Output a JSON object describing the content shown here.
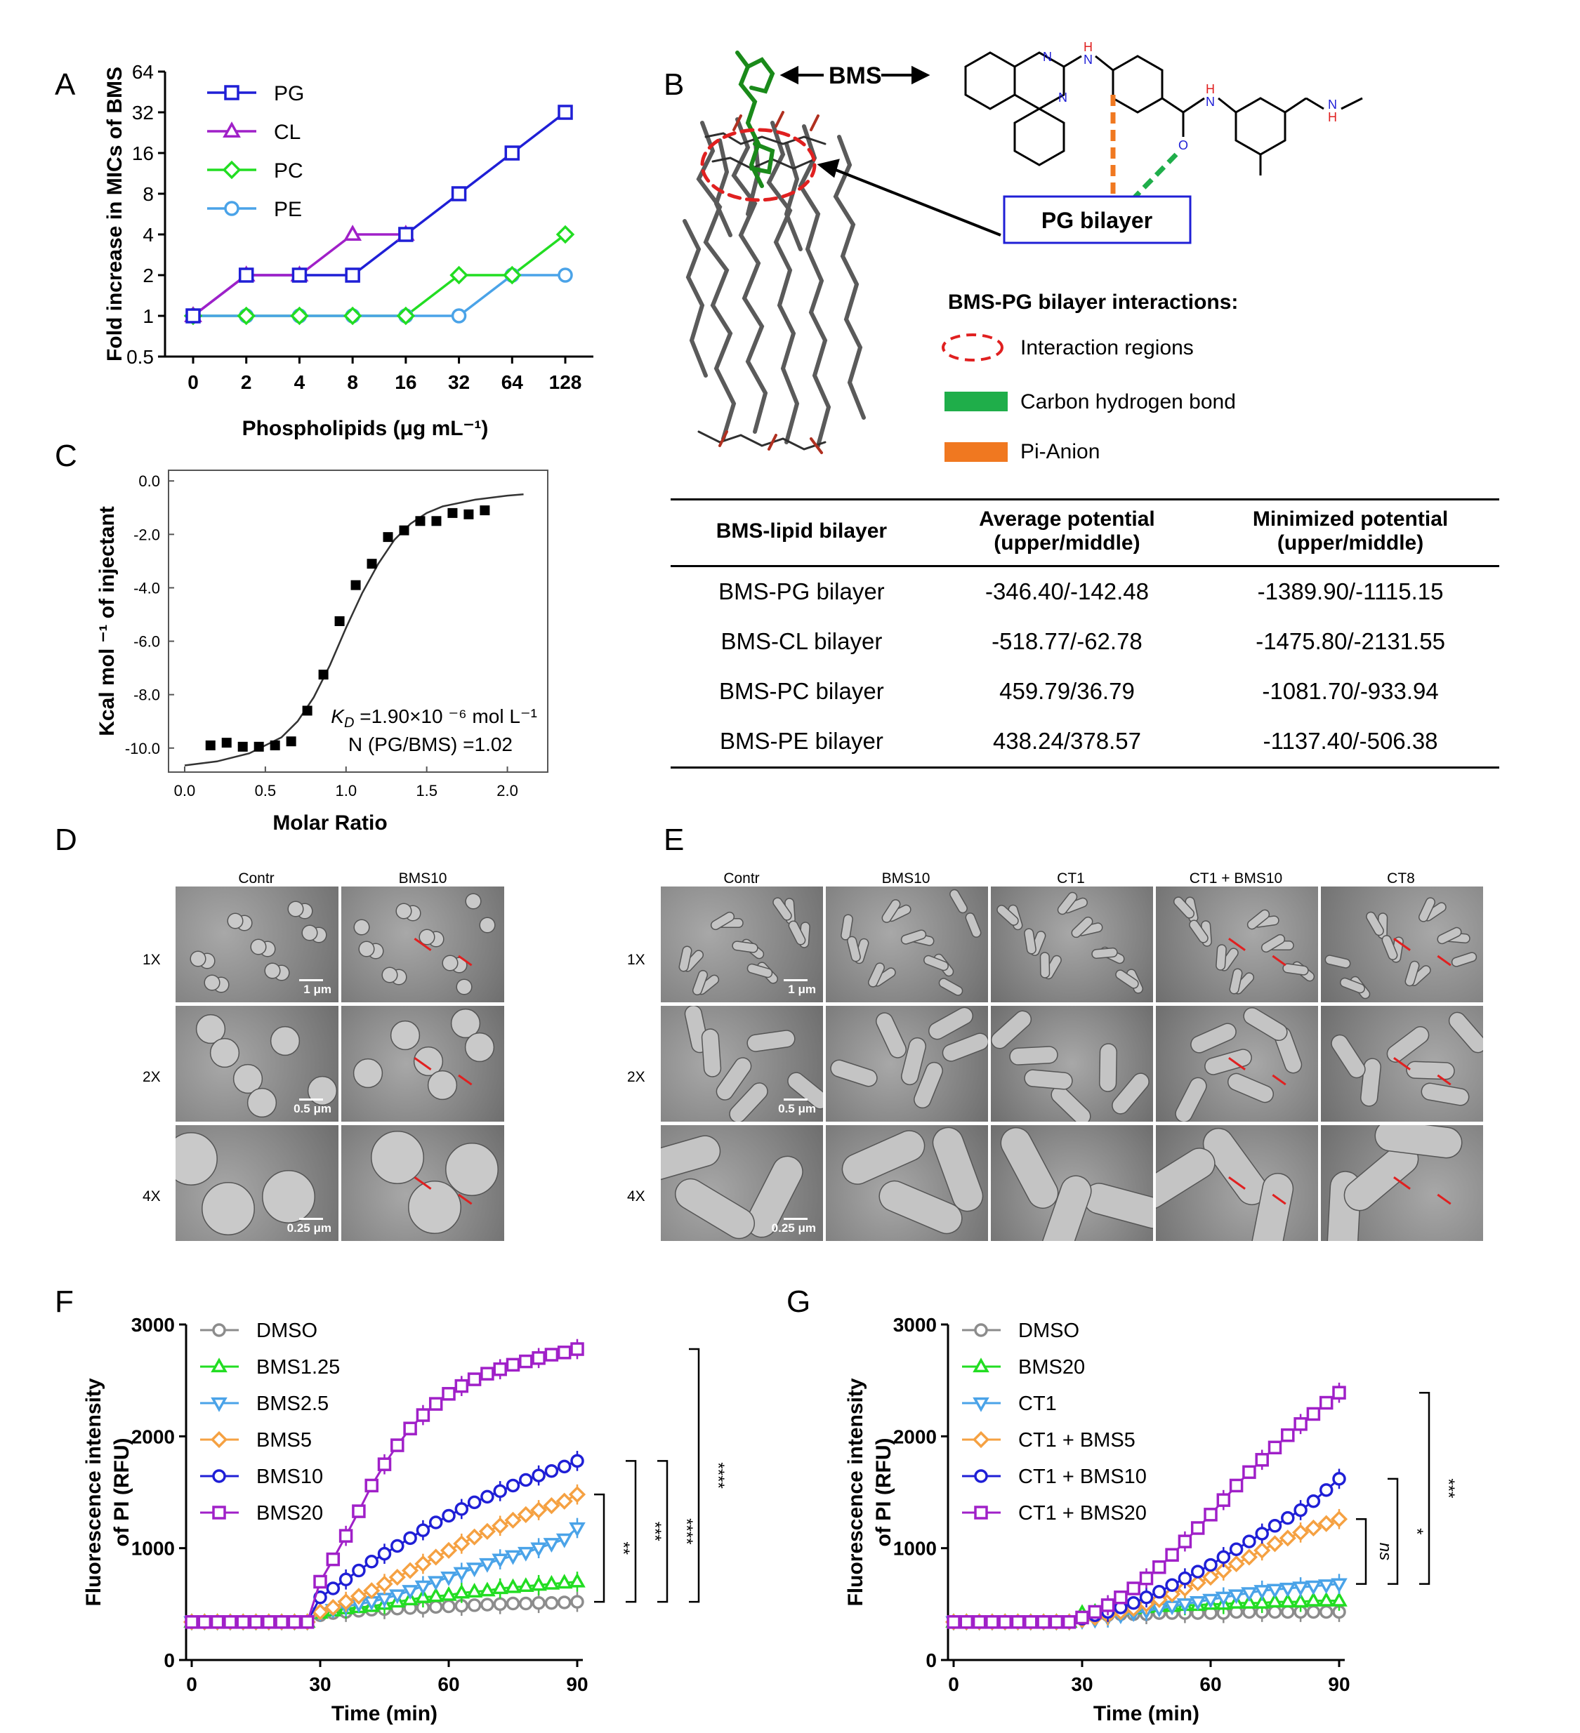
{
  "panel_letters": [
    "A",
    "B",
    "C",
    "D",
    "E",
    "F",
    "G"
  ],
  "chart_data": [
    {
      "id": "A",
      "type": "line",
      "xlabel": "Phospholipids (μg mL⁻¹)",
      "ylabel": "Fold increase in MICs of BMS",
      "x": [
        "0",
        "2",
        "4",
        "8",
        "16",
        "32",
        "64",
        "128"
      ],
      "y_scale": "log2",
      "yticks": [
        "0.5",
        "1",
        "2",
        "4",
        "8",
        "16",
        "32",
        "64"
      ],
      "ylim": [
        0.5,
        64
      ],
      "legend_position": "top-left",
      "series": [
        {
          "name": "PG",
          "marker": "square",
          "color": "#1f1fd6",
          "values": [
            1,
            2,
            2,
            2,
            4,
            8,
            16,
            32
          ]
        },
        {
          "name": "CL",
          "marker": "triangle",
          "color": "#a020c8",
          "values": [
            1,
            2,
            2,
            4,
            4,
            null,
            null,
            null
          ]
        },
        {
          "name": "PC",
          "marker": "diamond",
          "color": "#22dd22",
          "values": [
            1,
            1,
            1,
            1,
            1,
            2,
            2,
            4
          ]
        },
        {
          "name": "PE",
          "marker": "circle",
          "color": "#4aa3e8",
          "values": [
            1,
            1,
            1,
            1,
            1,
            1,
            2,
            2
          ]
        }
      ]
    },
    {
      "id": "C",
      "type": "scatter",
      "xlabel": "Molar Ratio",
      "ylabel": "Kcal mol ⁻¹ of injectant",
      "xticks": [
        "0.0",
        "0.5",
        "1.0",
        "1.5",
        "2.0"
      ],
      "yticks": [
        "0.0",
        "-2.0",
        "-4.0",
        "-6.0",
        "-8.0",
        "-10.0"
      ],
      "xlim": [
        -0.1,
        2.25
      ],
      "ylim": [
        -10.9,
        0.4
      ],
      "annotation_kd": "K",
      "annotation_kd_sub": "D",
      "annotation_kd_rest": " =1.90×10 ⁻⁶ mol L⁻¹",
      "annotation_n": "N (PG/BMS) =1.02",
      "points": [
        [
          0.16,
          -9.9
        ],
        [
          0.26,
          -9.8
        ],
        [
          0.36,
          -9.95
        ],
        [
          0.46,
          -9.95
        ],
        [
          0.56,
          -9.9
        ],
        [
          0.66,
          -9.75
        ],
        [
          0.76,
          -8.6
        ],
        [
          0.86,
          -7.25
        ],
        [
          0.96,
          -5.25
        ],
        [
          1.06,
          -3.9
        ],
        [
          1.16,
          -3.1
        ],
        [
          1.26,
          -2.1
        ],
        [
          1.36,
          -1.85
        ],
        [
          1.46,
          -1.5
        ],
        [
          1.56,
          -1.5
        ],
        [
          1.66,
          -1.2
        ],
        [
          1.76,
          -1.25
        ],
        [
          1.86,
          -1.1
        ]
      ],
      "fit": [
        [
          0.0,
          -10.65
        ],
        [
          0.2,
          -10.5
        ],
        [
          0.4,
          -10.2
        ],
        [
          0.6,
          -9.6
        ],
        [
          0.7,
          -9.0
        ],
        [
          0.8,
          -8.1
        ],
        [
          0.9,
          -6.9
        ],
        [
          1.0,
          -5.5
        ],
        [
          1.1,
          -4.2
        ],
        [
          1.2,
          -3.1
        ],
        [
          1.3,
          -2.2
        ],
        [
          1.4,
          -1.6
        ],
        [
          1.5,
          -1.2
        ],
        [
          1.6,
          -0.95
        ],
        [
          1.8,
          -0.7
        ],
        [
          2.0,
          -0.55
        ],
        [
          2.1,
          -0.5
        ]
      ]
    },
    {
      "id": "F",
      "type": "line",
      "xlabel": "Time (min)",
      "ylabel": [
        "Fluorescence intensity",
        "of PI (RFU)"
      ],
      "xticks": [
        "0",
        "30",
        "60",
        "90"
      ],
      "yticks": [
        "0",
        "1000",
        "2000",
        "3000"
      ],
      "xlim": [
        0,
        90
      ],
      "ylim": [
        0,
        3000
      ],
      "legend_position": "top-left",
      "x": [
        0,
        3,
        6,
        9,
        12,
        15,
        18,
        21,
        24,
        27,
        30,
        33,
        36,
        39,
        42,
        45,
        48,
        51,
        54,
        57,
        60,
        63,
        66,
        69,
        72,
        75,
        78,
        81,
        84,
        87,
        90
      ],
      "series": [
        {
          "name": "DMSO",
          "marker": "circle",
          "color": "#8c8c8c",
          "values": [
            340,
            340,
            340,
            340,
            340,
            340,
            340,
            340,
            340,
            340,
            400,
            420,
            430,
            440,
            450,
            455,
            460,
            465,
            470,
            475,
            480,
            485,
            490,
            495,
            500,
            505,
            505,
            510,
            510,
            515,
            520
          ]
        },
        {
          "name": "BMS1.25",
          "marker": "triangle",
          "color": "#22dd22",
          "values": [
            340,
            340,
            340,
            340,
            340,
            340,
            340,
            340,
            340,
            340,
            420,
            440,
            460,
            470,
            480,
            500,
            520,
            540,
            560,
            570,
            580,
            600,
            610,
            620,
            640,
            650,
            660,
            670,
            680,
            690,
            700
          ]
        },
        {
          "name": "BMS2.5",
          "marker": "triangle-down",
          "color": "#4aa3e8",
          "values": [
            340,
            340,
            340,
            340,
            340,
            340,
            340,
            340,
            340,
            340,
            420,
            450,
            480,
            500,
            520,
            550,
            580,
            620,
            660,
            700,
            740,
            780,
            820,
            860,
            900,
            930,
            960,
            1000,
            1040,
            1080,
            1180
          ]
        },
        {
          "name": "BMS5",
          "marker": "diamond",
          "color": "#f5a142",
          "values": [
            340,
            340,
            340,
            340,
            340,
            340,
            340,
            340,
            340,
            340,
            430,
            470,
            520,
            570,
            620,
            680,
            740,
            800,
            860,
            920,
            980,
            1040,
            1100,
            1150,
            1200,
            1250,
            1300,
            1340,
            1380,
            1420,
            1480
          ]
        },
        {
          "name": "BMS10",
          "marker": "circle",
          "color": "#1f1fd6",
          "values": [
            340,
            340,
            340,
            340,
            340,
            340,
            340,
            340,
            340,
            340,
            560,
            640,
            720,
            800,
            880,
            950,
            1020,
            1090,
            1160,
            1230,
            1290,
            1350,
            1410,
            1460,
            1510,
            1560,
            1610,
            1650,
            1690,
            1730,
            1780
          ]
        },
        {
          "name": "BMS20",
          "marker": "square",
          "color": "#a020c8",
          "values": [
            340,
            340,
            340,
            340,
            340,
            340,
            340,
            340,
            340,
            340,
            700,
            900,
            1110,
            1330,
            1560,
            1750,
            1920,
            2070,
            2190,
            2290,
            2380,
            2450,
            2510,
            2560,
            2600,
            2640,
            2670,
            2700,
            2730,
            2750,
            2780
          ]
        }
      ],
      "brackets": [
        "**",
        "***",
        "****",
        "****"
      ]
    },
    {
      "id": "G",
      "type": "line",
      "xlabel": "Time (min)",
      "ylabel": [
        "Fluorescence intensity",
        "of PI (RFU)"
      ],
      "xticks": [
        "0",
        "30",
        "60",
        "90"
      ],
      "yticks": [
        "0",
        "1000",
        "2000",
        "3000"
      ],
      "xlim": [
        0,
        90
      ],
      "ylim": [
        0,
        3000
      ],
      "legend_position": "top-left",
      "x": [
        0,
        3,
        6,
        9,
        12,
        15,
        18,
        21,
        24,
        27,
        30,
        33,
        36,
        39,
        42,
        45,
        48,
        51,
        54,
        57,
        60,
        63,
        66,
        69,
        72,
        75,
        78,
        81,
        84,
        87,
        90
      ],
      "series": [
        {
          "name": "DMSO",
          "marker": "circle",
          "color": "#8c8c8c",
          "values": [
            340,
            340,
            340,
            340,
            340,
            340,
            340,
            340,
            340,
            340,
            390,
            400,
            400,
            410,
            410,
            410,
            420,
            420,
            420,
            420,
            420,
            420,
            430,
            430,
            430,
            430,
            430,
            430,
            430,
            430,
            430
          ]
        },
        {
          "name": "BMS20",
          "marker": "triangle",
          "color": "#22dd22",
          "values": [
            340,
            340,
            340,
            340,
            340,
            340,
            340,
            340,
            340,
            340,
            420,
            430,
            440,
            450,
            460,
            470,
            480,
            480,
            490,
            490,
            500,
            500,
            510,
            510,
            510,
            520,
            520,
            520,
            530,
            530,
            530
          ]
        },
        {
          "name": "CT1",
          "marker": "triangle-down",
          "color": "#4aa3e8",
          "values": [
            340,
            340,
            340,
            340,
            340,
            340,
            340,
            340,
            340,
            340,
            350,
            360,
            380,
            400,
            420,
            440,
            460,
            480,
            500,
            520,
            540,
            560,
            580,
            600,
            620,
            630,
            640,
            650,
            660,
            670,
            680
          ]
        },
        {
          "name": "CT1 + BMS5",
          "marker": "diamond",
          "color": "#f5a142",
          "values": [
            340,
            340,
            340,
            340,
            340,
            340,
            340,
            340,
            340,
            340,
            360,
            380,
            400,
            430,
            460,
            500,
            540,
            590,
            640,
            690,
            740,
            800,
            860,
            920,
            980,
            1040,
            1090,
            1140,
            1180,
            1220,
            1260
          ]
        },
        {
          "name": "CT1 + BMS10",
          "marker": "circle",
          "color": "#1f1fd6",
          "values": [
            340,
            340,
            340,
            340,
            340,
            340,
            340,
            340,
            340,
            340,
            370,
            400,
            430,
            470,
            510,
            560,
            610,
            670,
            730,
            790,
            850,
            920,
            990,
            1060,
            1130,
            1200,
            1270,
            1340,
            1420,
            1520,
            1620
          ]
        },
        {
          "name": "CT1 + BMS20",
          "marker": "square",
          "color": "#a020c8",
          "values": [
            340,
            340,
            340,
            340,
            340,
            340,
            340,
            340,
            340,
            340,
            380,
            430,
            490,
            560,
            640,
            730,
            830,
            940,
            1060,
            1180,
            1300,
            1430,
            1560,
            1680,
            1790,
            1900,
            2010,
            2110,
            2200,
            2300,
            2390
          ]
        }
      ],
      "brackets": [
        "ns",
        "*",
        "***"
      ]
    }
  ],
  "panel_b": {
    "bms_label": "BMS",
    "pg_bilayer_box": "PG bilayer",
    "interactions_title": "BMS-PG bilayer interactions:",
    "legend": [
      {
        "label": "Interaction regions",
        "color": "#e02020",
        "style": "dashed-ellipse"
      },
      {
        "label": "Carbon hydrogen bond",
        "color": "#1fae4a",
        "style": "bar"
      },
      {
        "label": "Pi-Anion",
        "color": "#f07820",
        "style": "bar"
      }
    ],
    "atom_labels": {
      "n1": "N",
      "n2": "N",
      "nh_left": "H",
      "nh_left_n": "N",
      "amide_h": "H",
      "amide_n": "N",
      "o": "O",
      "amine_n": "N",
      "amine_h": "H"
    }
  },
  "potential_table": {
    "headers": [
      "BMS-lipid bilayer",
      "Average potential\n(upper/middle)",
      "Minimized potential\n(upper/middle)"
    ],
    "rows": [
      [
        "BMS-PG bilayer",
        "-346.40/-142.48",
        "-1389.90/-1115.15"
      ],
      [
        "BMS-CL bilayer",
        "-518.77/-62.78",
        "-1475.80/-2131.55"
      ],
      [
        "BMS-PC bilayer",
        "459.79/36.79",
        "-1081.70/-933.94"
      ],
      [
        "BMS-PE bilayer",
        "438.24/378.57",
        "-1137.40/-506.38"
      ]
    ]
  },
  "panel_d": {
    "columns": [
      "Contr",
      "BMS10"
    ],
    "rows": [
      "1X",
      "2X",
      "4X"
    ],
    "scales": [
      "1 μm",
      "0.5 μm",
      "0.25 μm"
    ]
  },
  "panel_e": {
    "columns": [
      "Contr",
      "BMS10",
      "CT1",
      "CT1 + BMS10",
      "CT8"
    ],
    "rows": [
      "1X",
      "2X",
      "4X"
    ],
    "scales": [
      "1 μm",
      "0.5 μm",
      "0.25 μm"
    ]
  }
}
